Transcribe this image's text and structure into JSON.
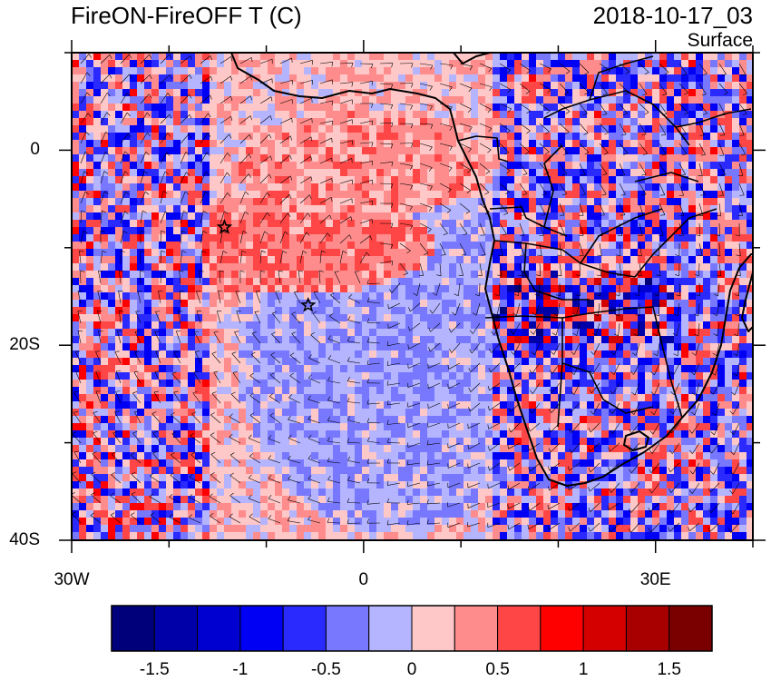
{
  "title": "FireON-FireOFF T (C)",
  "datetime": "2018-10-17_03",
  "level": "Surface",
  "map": {
    "lon_range": [
      -30,
      40
    ],
    "lat_range": [
      -40,
      10
    ],
    "x_ticks": [
      {
        "value": -30,
        "label": "30W"
      },
      {
        "value": 0,
        "label": "0"
      },
      {
        "value": 30,
        "label": "30E"
      }
    ],
    "y_ticks": [
      {
        "value": 0,
        "label": "0"
      },
      {
        "value": -20,
        "label": "20S"
      },
      {
        "value": -40,
        "label": "40S"
      }
    ],
    "markers": [
      {
        "type": "star-icon",
        "lon": -14.3,
        "lat": -7.9
      },
      {
        "type": "star-icon",
        "lon": -5.7,
        "lat": -15.9
      }
    ]
  },
  "colorbar": {
    "levels": [
      -1.5,
      -1.25,
      -1,
      -0.75,
      -0.5,
      -0.25,
      0,
      0.25,
      0.5,
      0.75,
      1,
      1.25,
      1.5
    ],
    "labels": [
      "-1.5",
      "-1",
      "-0.5",
      "0",
      "0.5",
      "1",
      "1.5"
    ],
    "colors": [
      "#00007a",
      "#0000a8",
      "#0000d0",
      "#0000f5",
      "#2a2aff",
      "#7878ff",
      "#b4b4ff",
      "#ffc8c8",
      "#ff8c8c",
      "#ff4646",
      "#ff0000",
      "#d40000",
      "#a80000",
      "#7a0000"
    ]
  }
}
